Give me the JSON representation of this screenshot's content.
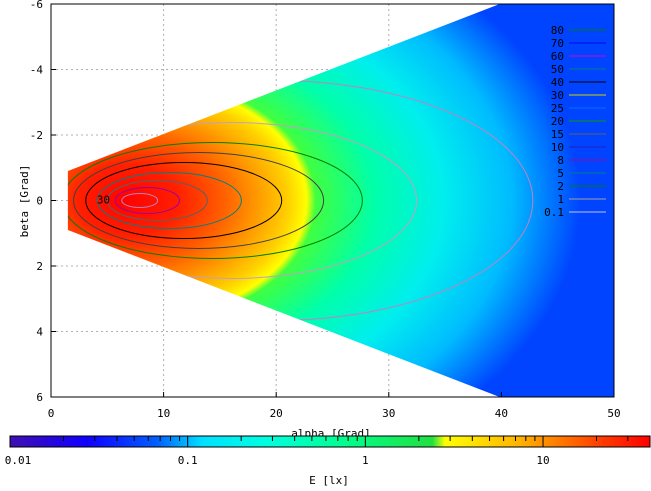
{
  "chart_data": {
    "type": "heatmap",
    "title": "",
    "xlabel": "alpha [Grad]",
    "ylabel": "beta [Grad]",
    "colorbar_label": "E [lx]",
    "xlim": [
      0,
      50
    ],
    "ylim": [
      6,
      -6
    ],
    "x_ticks": [
      "0",
      "10",
      "20",
      "30",
      "40",
      "50"
    ],
    "y_ticks": [
      "-6",
      "-4",
      "-2",
      "0",
      "2",
      "4",
      "6"
    ],
    "colorbar_ticks": [
      "0.01",
      "0.1",
      "1",
      "10"
    ],
    "colorbar_range": [
      0.01,
      40
    ],
    "colorbar_scale": "log",
    "grid": true,
    "legend_position": "top-right",
    "contour_levels": [
      {
        "label": "80",
        "color": "#008000"
      },
      {
        "label": "70",
        "color": "#0000ff"
      },
      {
        "label": "60",
        "color": "#d000d0"
      },
      {
        "label": "50",
        "color": "#008080"
      },
      {
        "label": "40",
        "color": "#000000"
      },
      {
        "label": "30",
        "color": "#d0d000"
      },
      {
        "label": "25",
        "color": "#0070ff"
      },
      {
        "label": "20",
        "color": "#00a000"
      },
      {
        "label": "15",
        "color": "#606060"
      },
      {
        "label": "10",
        "color": "#2020c0"
      },
      {
        "label": "8",
        "color": "#a000a0"
      },
      {
        "label": "5",
        "color": "#008080"
      },
      {
        "label": "2",
        "color": "#008000"
      },
      {
        "label": "1",
        "color": "#a0a0a0"
      },
      {
        "label": "0.1",
        "color": "#c0c0ff"
      }
    ],
    "peak_label": "30",
    "peak_position": {
      "x": 7,
      "y": 0
    },
    "field_x_range": [
      1.5,
      50
    ],
    "field_edge_slope": 0.133
  }
}
